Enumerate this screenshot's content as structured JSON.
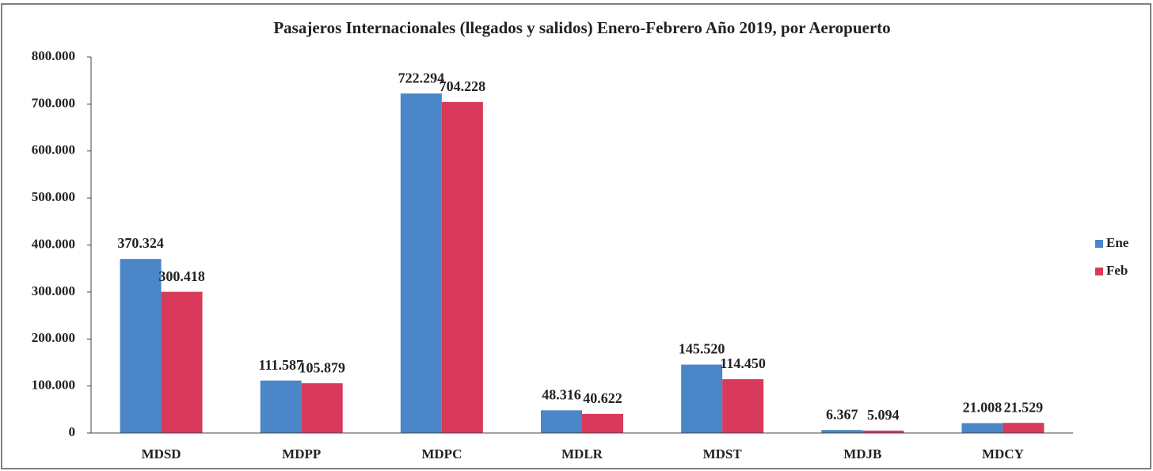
{
  "chart_data": {
    "type": "bar",
    "title": "Pasajeros Internacionales (llegados y salidos) Enero-Febrero  Año 2019, por Aeropuerto",
    "categories": [
      "MDSD",
      "MDPP",
      "MDPC",
      "MDLR",
      "MDST",
      "MDJB",
      "MDCY"
    ],
    "series": [
      {
        "name": "Ene",
        "color": "#4a86c8",
        "values": [
          370324,
          111587,
          722294,
          48316,
          145520,
          6367,
          21008
        ],
        "value_labels": [
          "370.324",
          "111.587",
          "722.294",
          "48.316",
          "145.520",
          "6.367",
          "21.008"
        ]
      },
      {
        "name": "Feb",
        "color": "#d9395a",
        "values": [
          300418,
          105879,
          704228,
          40622,
          114450,
          5094,
          21529
        ],
        "value_labels": [
          "300.418",
          "105.879",
          "704.228",
          "40.622",
          "114.450",
          "5.094",
          "21.529"
        ]
      }
    ],
    "ylim": [
      0,
      800000
    ],
    "yticks": [
      0,
      {
        "value": 100000,
        "label": "100.000"
      },
      {
        "value": 200000,
        "label": "200.000"
      },
      {
        "value": 300000,
        "label": "300.000"
      },
      {
        "value": 400000,
        "label": "400.000"
      },
      {
        "value": 500000,
        "label": "500.000"
      },
      {
        "value": 600000,
        "label": "600.000"
      },
      {
        "value": 700000,
        "label": "700.000"
      },
      {
        "value": 800000,
        "label": "800.000"
      }
    ],
    "legend": "right"
  }
}
